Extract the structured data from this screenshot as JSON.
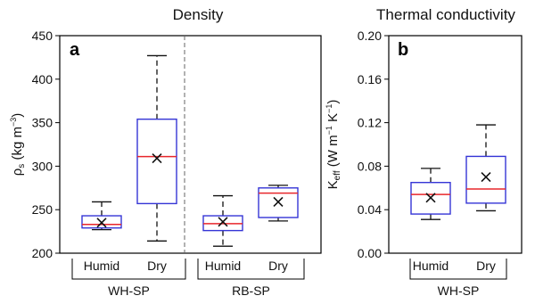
{
  "chart_data": [
    {
      "type": "box",
      "panel": "a",
      "title": "Density",
      "ylabel": {
        "base": "ρ",
        "sub": "s",
        "unit_open": " (kg m",
        "sup": "−3",
        "unit_close": ")"
      },
      "ylim": [
        200,
        450
      ],
      "yticks": [
        "200",
        "250",
        "300",
        "350",
        "400",
        "450"
      ],
      "colors": {
        "box": "#3535d6",
        "median": "#e8262b",
        "whisker": "#111111",
        "mean_marker": "#111111"
      },
      "groups": [
        {
          "label": "WH-SP",
          "categories": [
            "Humid",
            "Dry"
          ]
        },
        {
          "label": "RB-SP",
          "categories": [
            "Humid",
            "Dry"
          ]
        }
      ],
      "boxes": [
        {
          "group": "WH-SP",
          "category": "Humid",
          "min": 227,
          "q1": 229,
          "median": 233,
          "q3": 243,
          "max": 259,
          "mean": 235
        },
        {
          "group": "WH-SP",
          "category": "Dry",
          "min": 214,
          "q1": 257,
          "median": 311,
          "q3": 354,
          "max": 427,
          "mean": 309
        },
        {
          "group": "RB-SP",
          "category": "Humid",
          "min": 208,
          "q1": 226,
          "median": 234,
          "q3": 243,
          "max": 266,
          "mean": 236
        },
        {
          "group": "RB-SP",
          "category": "Dry",
          "min": 237,
          "q1": 241,
          "median": 269,
          "q3": 275,
          "max": 278,
          "mean": 259
        }
      ]
    },
    {
      "type": "box",
      "panel": "b",
      "title": "Thermal conductivity",
      "ylabel": {
        "base": "K",
        "sub": "eff",
        "unit_open": " (W m",
        "sup1": "−1",
        "mid": " K",
        "sup2": "−1",
        "unit_close": ")"
      },
      "ylim": [
        0.0,
        0.2
      ],
      "yticks": [
        "0.00",
        "0.04",
        "0.08",
        "0.12",
        "0.16",
        "0.20"
      ],
      "colors": {
        "box": "#3535d6",
        "median": "#e8262b",
        "whisker": "#111111",
        "mean_marker": "#111111"
      },
      "groups": [
        {
          "label": "WH-SP",
          "categories": [
            "Humid",
            "Dry"
          ]
        }
      ],
      "boxes": [
        {
          "group": "WH-SP",
          "category": "Humid",
          "min": 0.031,
          "q1": 0.036,
          "median": 0.054,
          "q3": 0.065,
          "max": 0.078,
          "mean": 0.051
        },
        {
          "group": "WH-SP",
          "category": "Dry",
          "min": 0.039,
          "q1": 0.046,
          "median": 0.059,
          "q3": 0.089,
          "max": 0.118,
          "mean": 0.07
        }
      ]
    }
  ]
}
